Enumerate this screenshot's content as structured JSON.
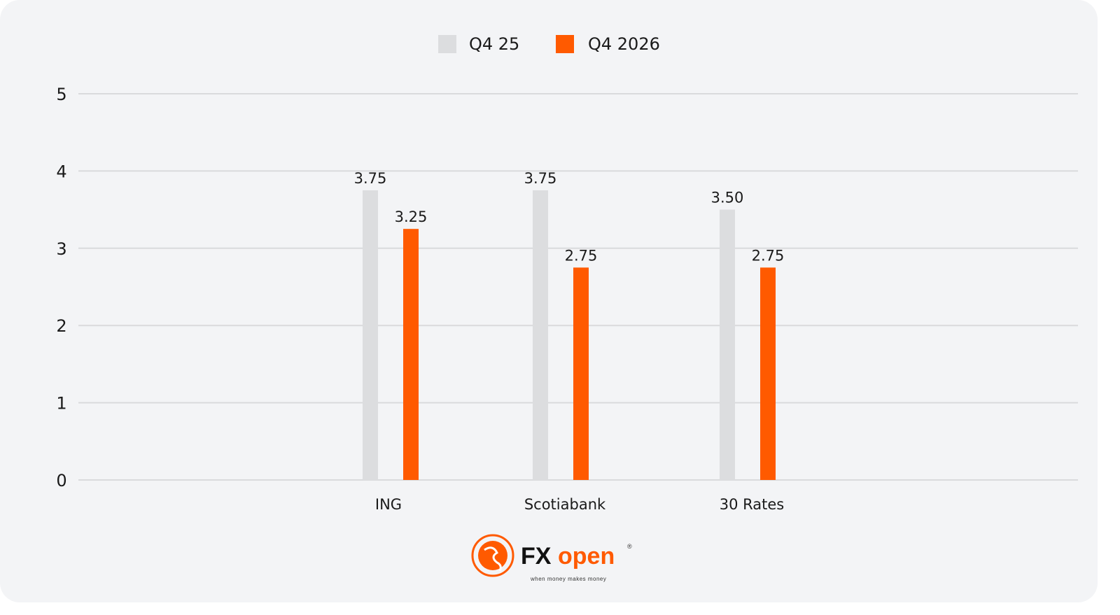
{
  "chart_data": {
    "type": "bar",
    "title": "",
    "xlabel": "",
    "ylabel": "",
    "categories": [
      "ING",
      "Scotiabank",
      "30 Rates"
    ],
    "series": [
      {
        "name": "Q4 25",
        "values": [
          3.75,
          3.75,
          3.5
        ],
        "labels": [
          "3.75",
          "3.75",
          "3.50"
        ],
        "color": "#dcdddf"
      },
      {
        "name": "Q4 2026",
        "values": [
          3.25,
          2.75,
          2.75
        ],
        "labels": [
          "3.25",
          "2.75",
          "2.75"
        ],
        "color": "#ff5a00"
      }
    ],
    "ylim": [
      0,
      5
    ],
    "yticks": [
      "0",
      "1",
      "2",
      "3",
      "4",
      "5"
    ],
    "grid": true,
    "legend_placement": "top-center"
  },
  "logo": {
    "brand": "FXopen",
    "tagline": "when money makes money",
    "registered": "®"
  }
}
